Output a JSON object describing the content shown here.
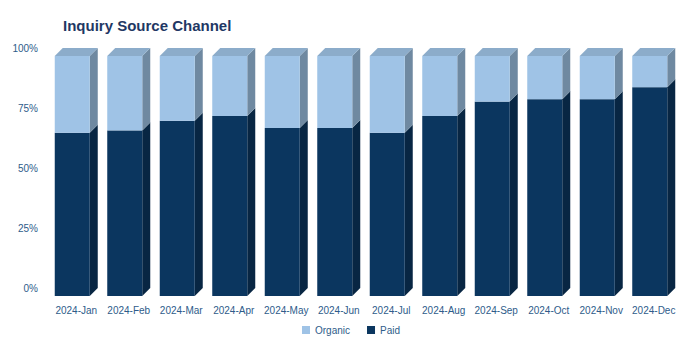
{
  "chart_data": {
    "type": "bar",
    "title": "Inquiry Source Channel",
    "stacked": true,
    "grid": false,
    "legend": "bottom",
    "categories": [
      "2024-Jan",
      "2024-Feb",
      "2024-Mar",
      "2024-Apr",
      "2024-May",
      "2024-Jun",
      "2024-Jul",
      "2024-Aug",
      "2024-Sep",
      "2024-Oct",
      "2024-Nov",
      "2024-Dec"
    ],
    "series": [
      {
        "name": "Organic",
        "color": "#9fc3e6",
        "values": [
          32,
          31,
          27,
          25,
          30,
          30,
          32,
          25,
          19,
          18,
          18,
          13
        ]
      },
      {
        "name": "Paid",
        "color": "#0b365f",
        "values": [
          68,
          69,
          73,
          75,
          70,
          70,
          68,
          75,
          81,
          82,
          82,
          87
        ]
      }
    ],
    "ylim": [
      0,
      100
    ],
    "yticks": [
      {
        "value": 0,
        "label": "0%"
      },
      {
        "value": 25,
        "label": "25%"
      },
      {
        "value": 50,
        "label": "50%"
      },
      {
        "value": 75,
        "label": "75%"
      },
      {
        "value": 100,
        "label": "100%"
      }
    ]
  }
}
